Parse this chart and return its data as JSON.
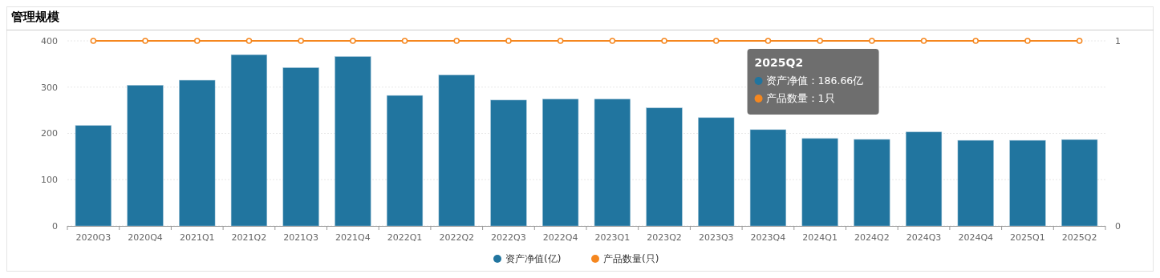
{
  "chart_data": {
    "type": "bar",
    "title": "管理规模",
    "categories": [
      "2020Q3",
      "2020Q4",
      "2021Q1",
      "2021Q2",
      "2021Q3",
      "2021Q4",
      "2022Q1",
      "2022Q2",
      "2022Q3",
      "2022Q4",
      "2023Q1",
      "2023Q2",
      "2023Q3",
      "2023Q4",
      "2024Q1",
      "2024Q2",
      "2024Q3",
      "2024Q4",
      "2025Q1",
      "2025Q2"
    ],
    "series": [
      {
        "name": "资产净值(亿)",
        "color": "#21759f",
        "values": [
          217,
          304,
          315,
          370,
          342,
          366,
          282,
          326,
          272,
          274,
          274,
          255,
          234,
          208,
          189,
          187,
          203,
          185,
          185,
          186.66
        ]
      },
      {
        "name": "产品数量(只)",
        "type": "line",
        "axis": "y2",
        "color": "#f5871f",
        "values": [
          1,
          1,
          1,
          1,
          1,
          1,
          1,
          1,
          1,
          1,
          1,
          1,
          1,
          1,
          1,
          1,
          1,
          1,
          1,
          1
        ]
      }
    ],
    "ylim": [
      0,
      400
    ],
    "yticks": [
      0,
      100,
      200,
      300,
      400
    ],
    "y2lim": [
      0,
      1
    ],
    "y2ticks": [
      0,
      1
    ],
    "grid": "y",
    "legend": "bottom",
    "marker": "circle",
    "annotations": [
      "2025Q2",
      "资产净值：186.66亿",
      "产品数量：1只"
    ]
  }
}
